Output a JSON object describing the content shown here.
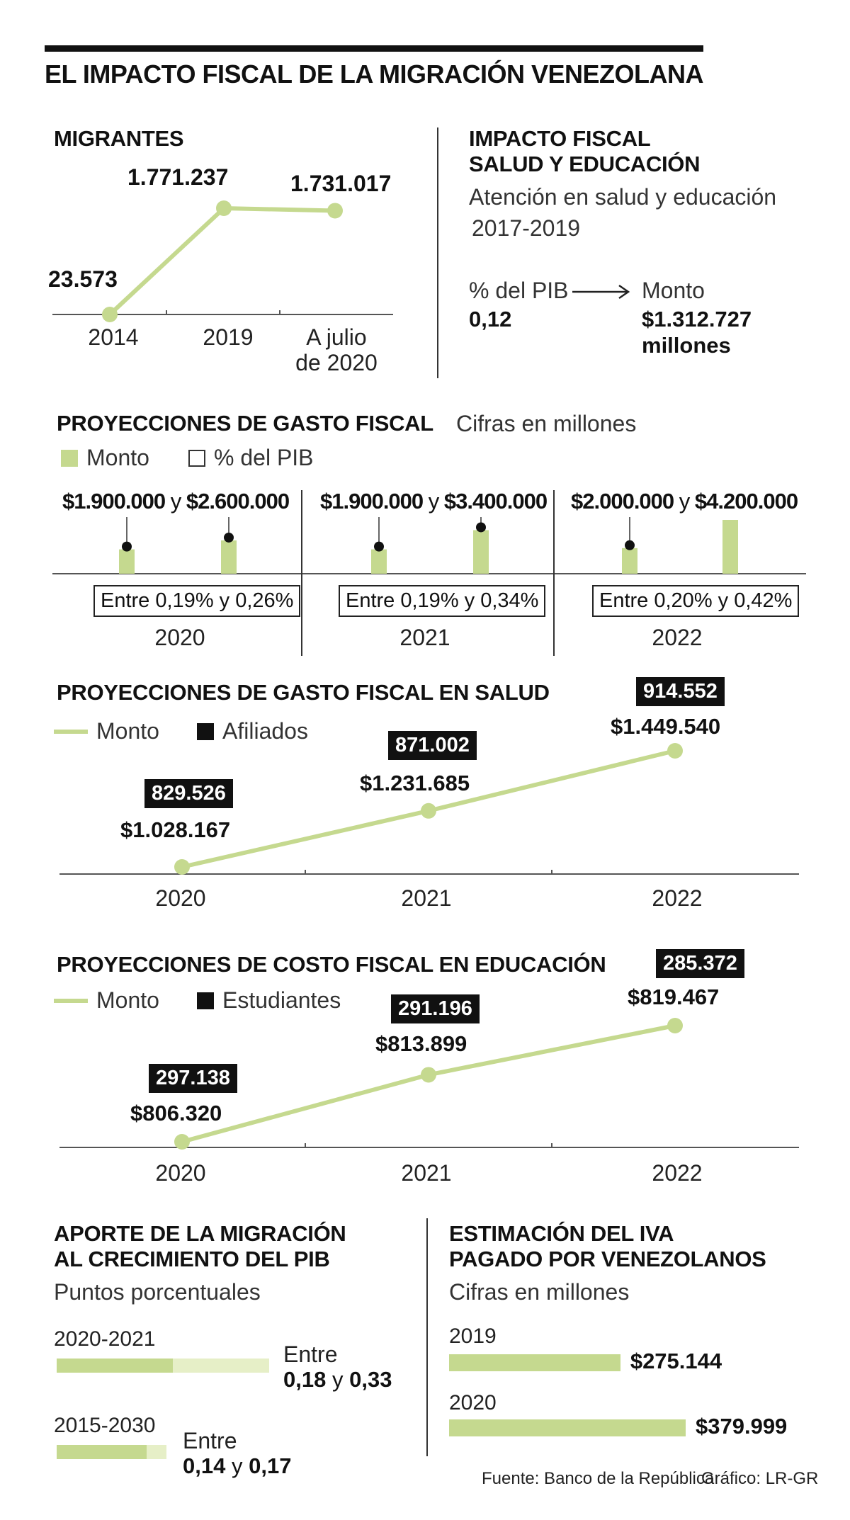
{
  "title": "EL IMPACTO FISCAL DE LA MIGRACIÓN VENEZOLANA",
  "colors": {
    "green": "#c5d98f",
    "light_green": "#e6efc7",
    "black": "#111111"
  },
  "migrantes": {
    "title": "MIGRANTES",
    "labels": [
      "2014",
      "2019",
      "A julio",
      "de 2020"
    ],
    "values_text": [
      "23.573",
      "1.771.237",
      "1.731.017"
    ]
  },
  "impacto": {
    "title_line1": "IMPACTO FISCAL",
    "title_line2": "SALUD Y EDUCACIÓN",
    "subtitle_line1": "Atención en salud y educación",
    "subtitle_line2": "2017-2019",
    "pib_label": "% del PIB",
    "pib_value": "0,12",
    "monto_label": "Monto",
    "monto_value_line1": "$1.312.727",
    "monto_value_line2": "millones"
  },
  "proyecciones": {
    "title": "PROYECCIONES DE GASTO FISCAL",
    "subtitle": "Cifras en millones",
    "legend_monto": "Monto",
    "legend_pib": "% del PIB",
    "groups": [
      {
        "year": "2020",
        "low": "$1.900.000",
        "y": "y",
        "high": "$2.600.000",
        "range": "Entre 0,19% y 0,26%"
      },
      {
        "year": "2021",
        "low": "$1.900.000",
        "y": "y",
        "high": "$3.400.000",
        "range": "Entre 0,19% y 0,34%"
      },
      {
        "year": "2022",
        "low": "$2.000.000",
        "y": "y",
        "high": "$4.200.000",
        "range": "Entre 0,20% y 0,42%"
      }
    ]
  },
  "salud": {
    "title": "PROYECCIONES DE GASTO FISCAL EN SALUD",
    "legend_monto": "Monto",
    "legend_afiliados": "Afiliados",
    "years": [
      "2020",
      "2021",
      "2022"
    ],
    "montos": [
      "$1.028.167",
      "$1.231.685",
      "$1.449.540"
    ],
    "afiliados": [
      "829.526",
      "871.002",
      "914.552"
    ]
  },
  "educacion": {
    "title": "PROYECCIONES DE COSTO FISCAL EN EDUCACIÓN",
    "legend_monto": "Monto",
    "legend_estudiantes": "Estudiantes",
    "years": [
      "2020",
      "2021",
      "2022"
    ],
    "montos": [
      "$806.320",
      "$813.899",
      "$819.467"
    ],
    "estudiantes": [
      "297.138",
      "291.196",
      "285.372"
    ]
  },
  "aporte": {
    "title_line1": "APORTE DE LA MIGRACIÓN",
    "title_line2": "AL CRECIMIENTO DEL PIB",
    "subtitle": "Puntos porcentuales",
    "rows": [
      {
        "period": "2020-2021",
        "entre": "Entre",
        "low": "0,18",
        "y": "y",
        "high": "0,33"
      },
      {
        "period": "2015-2030",
        "entre": "Entre",
        "low": "0,14",
        "y": "y",
        "high": "0,17"
      }
    ]
  },
  "iva": {
    "title_line1": "ESTIMACIÓN DEL IVA",
    "title_line2": "PAGADO POR VENEZOLANOS",
    "subtitle": "Cifras en millones",
    "rows": [
      {
        "year": "2019",
        "value": "$275.144"
      },
      {
        "year": "2020",
        "value": "$379.999"
      }
    ]
  },
  "footer": {
    "source": "Fuente: Banco de la República",
    "credit": "Gráfico: LR-GR"
  },
  "chart_data": [
    {
      "type": "line",
      "title": "MIGRANTES",
      "categories": [
        "2014",
        "2019",
        "A julio de 2020"
      ],
      "series": [
        {
          "values": [
            23573,
            1771237,
            1731017
          ]
        }
      ]
    },
    {
      "type": "bar",
      "title": "PROYECCIONES DE GASTO FISCAL",
      "subtitle": "Cifras en millones",
      "categories": [
        "2020",
        "2021",
        "2022"
      ],
      "series": [
        {
          "name": "Monto",
          "values": [
            1900000,
            1900000,
            2000000
          ]
        },
        {
          "name": "Monto",
          "values": [
            2600000,
            3400000,
            4200000
          ]
        }
      ],
      "pib_ranges": [
        "Entre 0,19% y 0,26%",
        "Entre 0,19% y 0,34%",
        "Entre 0,20% y 0,42%"
      ]
    },
    {
      "type": "line",
      "title": "PROYECCIONES DE GASTO FISCAL EN SALUD",
      "categories": [
        "2020",
        "2021",
        "2022"
      ],
      "series": [
        {
          "name": "Monto",
          "values": [
            1028167,
            1231685,
            1449540
          ]
        },
        {
          "name": "Afiliados",
          "values": [
            829526,
            871002,
            914552
          ]
        }
      ]
    },
    {
      "type": "line",
      "title": "PROYECCIONES DE COSTO FISCAL EN EDUCACIÓN",
      "categories": [
        "2020",
        "2021",
        "2022"
      ],
      "series": [
        {
          "name": "Monto",
          "values": [
            806320,
            813899,
            819467
          ]
        },
        {
          "name": "Estudiantes",
          "values": [
            297138,
            291196,
            285372
          ]
        }
      ]
    },
    {
      "type": "bar",
      "title": "APORTE DE LA MIGRACIÓN AL CRECIMIENTO DEL PIB",
      "subtitle": "Puntos porcentuales",
      "categories": [
        "2020-2021",
        "2015-2030"
      ],
      "series": [
        {
          "values": [
            0.18,
            0.14
          ]
        },
        {
          "values": [
            0.33,
            0.17
          ]
        }
      ]
    },
    {
      "type": "bar",
      "title": "ESTIMACIÓN DEL IVA PAGADO POR VENEZOLANOS",
      "subtitle": "Cifras en millones",
      "categories": [
        "2019",
        "2020"
      ],
      "series": [
        {
          "values": [
            275144,
            379999
          ]
        }
      ]
    }
  ]
}
